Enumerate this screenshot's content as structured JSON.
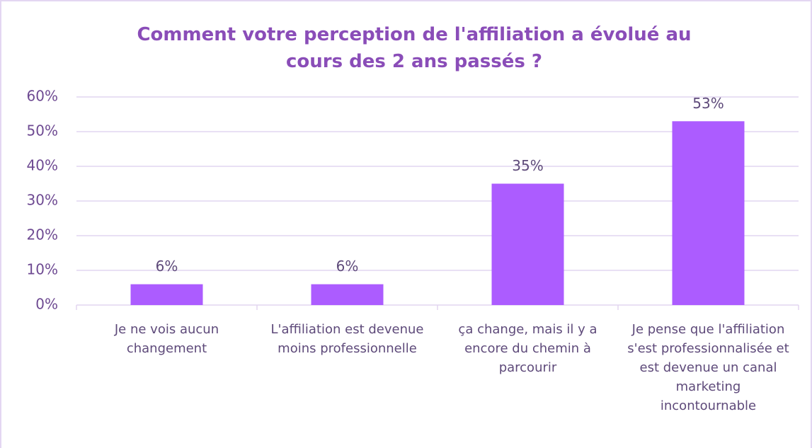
{
  "chart_data": {
    "type": "bar",
    "title": "Comment votre perception de l'affiliation a évolué au cours des 2 ans passés ?",
    "categories": [
      "Je ne vois aucun changement",
      "L'affiliation est devenue moins professionnelle",
      "ça change, mais il y a encore du chemin à parcourir",
      "Je pense que l'affiliation s'est professionnalisée et est devenue un canal marketing incontournable"
    ],
    "values": [
      6,
      6,
      35,
      53
    ],
    "value_labels": [
      "6%",
      "6%",
      "35%",
      "53%"
    ],
    "color": "#ac5cff",
    "ylim": [
      0,
      60
    ],
    "yticks": [
      {
        "value": 0,
        "label": "0%"
      },
      {
        "value": 10,
        "label": "10%"
      },
      {
        "value": 20,
        "label": "20%"
      },
      {
        "value": 30,
        "label": "30%"
      },
      {
        "value": 40,
        "label": "40%"
      },
      {
        "value": 50,
        "label": "50%"
      },
      {
        "value": 60,
        "label": "60%"
      }
    ],
    "grid": true
  }
}
